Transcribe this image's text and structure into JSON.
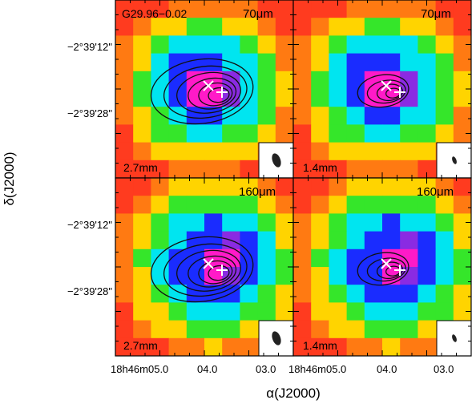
{
  "figure": {
    "source_label": "G29.96−0.02",
    "ylabel": "δ(J2000)",
    "xlabel": "α(J2000)",
    "y_ticks_top": [
      "−2°39'12\"",
      "−2°39'28\""
    ],
    "y_ticks_bottom": [
      "−2°39'12\"",
      "−2°39'28\""
    ],
    "x_ticks_left": [
      "18h46m05.0",
      "04.0",
      "03.0"
    ],
    "x_ticks_right": [
      "18h46m05.0",
      "04.0",
      "03.0"
    ],
    "panels": [
      {
        "wavelength": "70μm",
        "band": "2.7mm",
        "contours": "large"
      },
      {
        "wavelength": "70μm",
        "band": "1.4mm",
        "contours": "small"
      },
      {
        "wavelength": "160μm",
        "band": "2.7mm",
        "contours": "large"
      },
      {
        "wavelength": "160μm",
        "band": "1.4mm",
        "contours": "small"
      }
    ],
    "colors": {
      "red": "#ff3b1f",
      "orange": "#ff7a12",
      "yellow": "#ffd400",
      "green": "#35e62a",
      "cyan": "#00e5f0",
      "blue": "#1a2cff",
      "magenta": "#ff1ac8",
      "purple": "#8a2be2"
    }
  }
}
